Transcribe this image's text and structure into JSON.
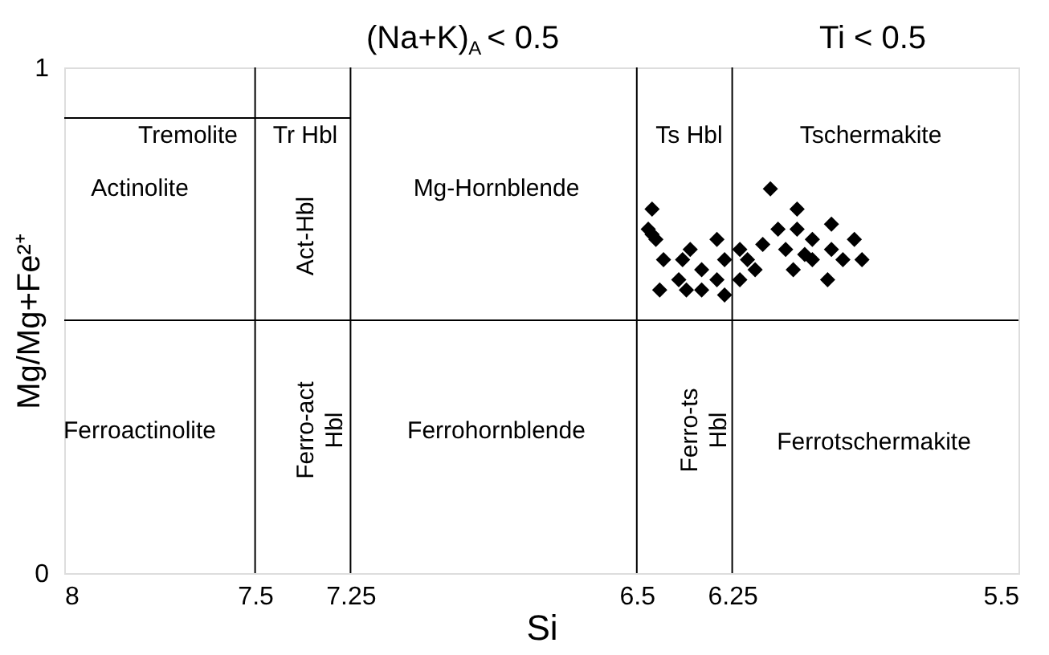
{
  "chart_data": {
    "type": "scatter",
    "xlabel": "Si",
    "ylabel": "Mg/Mg+Fe²⁺",
    "xlim": [
      8,
      5.5
    ],
    "ylim": [
      0,
      1
    ],
    "xticks": [
      8,
      7.5,
      7.25,
      6.5,
      6.25,
      5.5
    ],
    "yticks": [
      0,
      1
    ],
    "grid": false,
    "marker": "diamond",
    "series": [
      {
        "color": "#000000",
        "x": [
          6.46,
          6.47,
          6.46,
          6.45,
          6.43,
          6.44,
          6.39,
          6.38,
          6.36,
          6.33,
          6.37,
          6.33,
          6.29,
          6.27,
          6.29,
          6.27,
          6.23,
          6.23,
          6.21,
          6.19,
          6.17,
          6.15,
          6.13,
          6.11,
          6.08,
          6.08,
          6.06,
          6.09,
          6.04,
          6.04,
          5.99,
          5.99,
          6.0,
          5.96,
          5.93,
          5.91
        ],
        "values": [
          0.72,
          0.68,
          0.67,
          0.66,
          0.62,
          0.56,
          0.58,
          0.62,
          0.64,
          0.6,
          0.56,
          0.56,
          0.66,
          0.62,
          0.58,
          0.55,
          0.58,
          0.64,
          0.62,
          0.6,
          0.65,
          0.76,
          0.68,
          0.64,
          0.72,
          0.68,
          0.63,
          0.6,
          0.62,
          0.66,
          0.69,
          0.64,
          0.58,
          0.62,
          0.66,
          0.62
        ]
      },
      {
        "type": "line",
        "color": "#000000",
        "marker": "none",
        "x": [
          8,
          7.25
        ],
        "values": [
          0.9,
          0.9
        ]
      }
    ],
    "ref_lines": [
      {
        "axis": "x",
        "value": 7.5,
        "color": "#000000"
      },
      {
        "axis": "x",
        "value": 7.25,
        "color": "#000000"
      },
      {
        "axis": "x",
        "value": 6.5,
        "color": "#000000"
      },
      {
        "axis": "x",
        "value": 6.25,
        "color": "#000000"
      },
      {
        "axis": "y",
        "value": 0.5,
        "color": "#000000"
      }
    ],
    "annotations": [
      "(Na+K)$_{A}$ < 0.5",
      "Ti < 0.5",
      "Tremolite",
      "Tr Hbl",
      "Actinolite",
      "Act-Hbl",
      "Mg-Hornblende",
      "Ts Hbl",
      "Tschermakite",
      "Ferroactinolite",
      "Ferro-act Hbl",
      "Ferrohornblende",
      "Ferro-ts Hbl",
      "Ferrotschermakite"
    ]
  }
}
